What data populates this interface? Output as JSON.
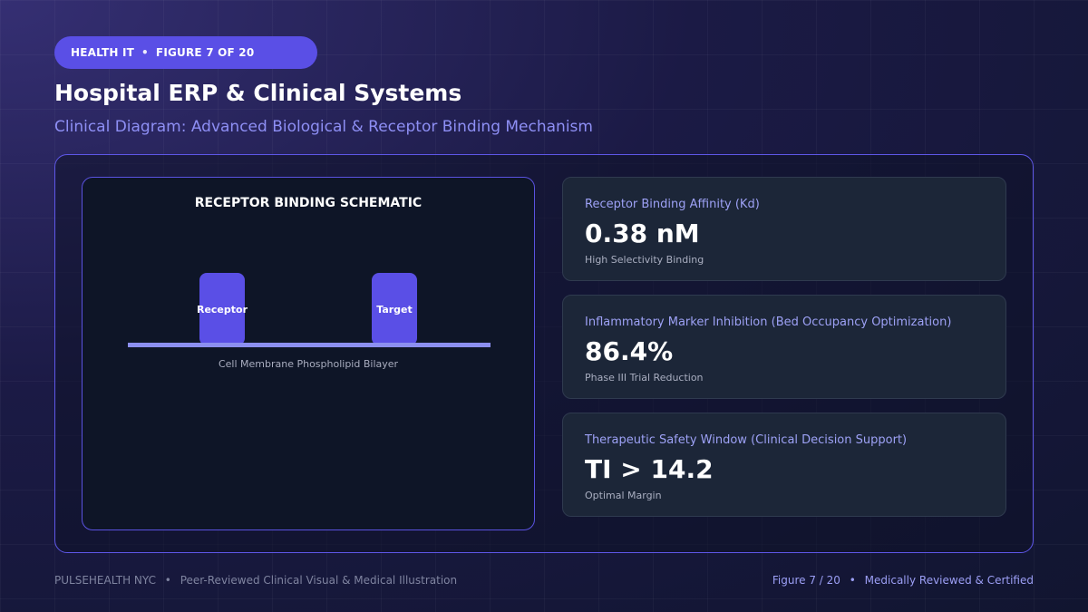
{
  "header": {
    "badge_category": "HEALTH IT",
    "badge_separator": "•",
    "badge_figure": "FIGURE 7 OF 20",
    "title": "Hospital ERP & Clinical Systems",
    "subtitle": "Clinical Diagram: Advanced Biological & Receptor Binding Mechanism"
  },
  "schematic": {
    "title": "RECEPTOR BINDING SCHEMATIC",
    "receptor_label": "Receptor",
    "target_label": "Target",
    "membrane_label": "Cell Membrane Phospholipid Bilayer"
  },
  "metrics": [
    {
      "label": "Receptor Binding Affinity (Kd)",
      "value": "0.38 nM",
      "note": "High Selectivity Binding"
    },
    {
      "label": "Inflammatory Marker Inhibition (Bed Occupancy Optimization)",
      "value": "86.4%",
      "note": "Phase III Trial Reduction"
    },
    {
      "label": "Therapeutic Safety Window (Clinical Decision Support)",
      "value": "TI > 14.2",
      "note": "Optimal Margin"
    }
  ],
  "footer": {
    "brand": "PULSEHEALTH NYC",
    "separator": "•",
    "left_text": "Peer-Reviewed Clinical Visual & Medical Illustration",
    "figure": "Figure 7 / 20",
    "right_text": "Medically Reviewed & Certified"
  },
  "colors": {
    "accent": "#5a4fe6",
    "accent_light": "#8e8ff5",
    "panel_border": "#5e57e8",
    "card_bg": "#1c2638"
  }
}
